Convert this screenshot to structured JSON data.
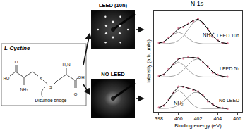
{
  "diagram": {
    "molecule": {
      "name": "L-Cystine",
      "note": "Disulfide bridge",
      "atoms": [
        "O",
        "HO",
        "NH₂",
        "S",
        "S",
        "H₂N",
        "O",
        "OH"
      ]
    },
    "leed_images": [
      {
        "label": "LEED (10h)",
        "pattern": true
      },
      {
        "label": "NO LEED",
        "pattern": false
      }
    ]
  },
  "chart_data": {
    "type": "line",
    "title": "N 1s",
    "x_label": "Binding energy (eV)",
    "y_label": "Intensity (arb. units)",
    "x": [
      398,
      398.5,
      399,
      399.5,
      400,
      400.5,
      401,
      401.5,
      402,
      402.5,
      403,
      403.5,
      404,
      404.5,
      405
    ],
    "xlim": [
      397.5,
      406.5
    ],
    "xticks": [
      398,
      400,
      402,
      404,
      406
    ],
    "ylim": [
      -0.05,
      3.0
    ],
    "tick_labels": "x",
    "annotations": [
      "NH₃⁺",
      "NH₂"
    ],
    "series": [
      {
        "name": "LEED 10h",
        "color": "#e0809c",
        "marker": "circle",
        "values": [
          2.03,
          2.05,
          2.19,
          2.3,
          2.47,
          2.5,
          2.62,
          2.68,
          2.76,
          2.62,
          2.45,
          2.21,
          2.11,
          2.02,
          2.02
        ],
        "fit": [
          2.02,
          2.06,
          2.17,
          2.32,
          2.45,
          2.52,
          2.6,
          2.7,
          2.74,
          2.64,
          2.44,
          2.23,
          2.1,
          2.03,
          2.01
        ],
        "components": [
          [
            2.02,
            2.06,
            2.16,
            2.29,
            2.35,
            2.29,
            2.16,
            2.06,
            2.02,
            2.0,
            2.0,
            2.0,
            2.0,
            2.0,
            2.0
          ],
          [
            2.0,
            2.0,
            2.01,
            2.03,
            2.1,
            2.23,
            2.44,
            2.64,
            2.72,
            2.64,
            2.44,
            2.23,
            2.1,
            2.03,
            2.01
          ]
        ]
      },
      {
        "name": "LEED 5h",
        "color": "#e0809c",
        "marker": "circle",
        "values": [
          1.03,
          1.07,
          1.24,
          1.38,
          1.55,
          1.56,
          1.6,
          1.58,
          1.58,
          1.44,
          1.31,
          1.13,
          1.07,
          1.01,
          1.01
        ],
        "fit": [
          1.02,
          1.08,
          1.22,
          1.4,
          1.54,
          1.58,
          1.58,
          1.59,
          1.57,
          1.46,
          1.3,
          1.15,
          1.06,
          1.02,
          1.0
        ],
        "components": [
          [
            1.02,
            1.08,
            1.21,
            1.37,
            1.45,
            1.37,
            1.21,
            1.08,
            1.02,
            1.0,
            1.0,
            1.0,
            1.0,
            1.0,
            1.0
          ],
          [
            1.0,
            1.0,
            1.01,
            1.03,
            1.09,
            1.21,
            1.37,
            1.51,
            1.55,
            1.46,
            1.3,
            1.15,
            1.06,
            1.02,
            1.0
          ]
        ]
      },
      {
        "name": "No LEED",
        "color": "#e0809c",
        "marker": "circle",
        "values": [
          0.08,
          0.14,
          0.33,
          0.52,
          0.71,
          0.7,
          0.68,
          0.61,
          0.57,
          0.45,
          0.27,
          0.18,
          0.08,
          0.07,
          0.04
        ],
        "fit": [
          0.07,
          0.15,
          0.31,
          0.54,
          0.7,
          0.72,
          0.66,
          0.63,
          0.56,
          0.44,
          0.29,
          0.17,
          0.09,
          0.06,
          0.05
        ],
        "components": [
          [
            0.07,
            0.15,
            0.3,
            0.5,
            0.6,
            0.5,
            0.3,
            0.15,
            0.07,
            0.05,
            0.05,
            0.05,
            0.05,
            0.05,
            0.05
          ],
          [
            0.05,
            0.05,
            0.06,
            0.09,
            0.15,
            0.27,
            0.41,
            0.53,
            0.54,
            0.44,
            0.29,
            0.17,
            0.09,
            0.06,
            0.05
          ]
        ]
      }
    ]
  }
}
